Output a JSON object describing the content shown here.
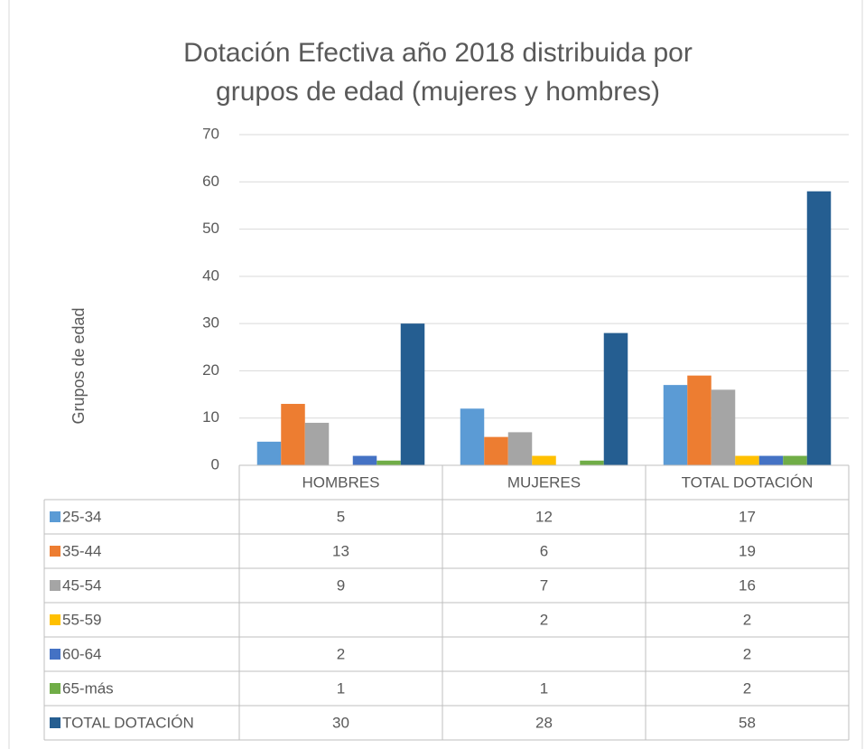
{
  "chart_data": {
    "type": "bar",
    "title": [
      "Dotación Efectiva año 2018 distribuida por",
      "grupos de edad (mujeres y hombres)"
    ],
    "y_label": "Grupos de edad",
    "categories": [
      "HOMBRES",
      "MUJERES",
      "TOTAL DOTACIÓN"
    ],
    "series": [
      {
        "name": "25-34",
        "color": "#5b9bd5",
        "values": [
          5,
          12,
          17
        ]
      },
      {
        "name": "35-44",
        "color": "#ed7d31",
        "values": [
          13,
          6,
          19
        ]
      },
      {
        "name": "45-54",
        "color": "#a5a5a5",
        "values": [
          9,
          7,
          16
        ]
      },
      {
        "name": "55-59",
        "color": "#ffc000",
        "values": [
          null,
          2,
          2
        ]
      },
      {
        "name": "60-64",
        "color": "#4472c4",
        "values": [
          2,
          null,
          2
        ]
      },
      {
        "name": "65-más",
        "color": "#70ad47",
        "values": [
          1,
          1,
          2
        ]
      },
      {
        "name": "TOTAL DOTACIÓN",
        "color": "#255e91",
        "values": [
          30,
          28,
          58
        ]
      }
    ],
    "ylim": [
      0,
      70
    ],
    "yticks": [
      0,
      10,
      20,
      30,
      40,
      50,
      60,
      70
    ],
    "grid": true,
    "data_table": true
  }
}
